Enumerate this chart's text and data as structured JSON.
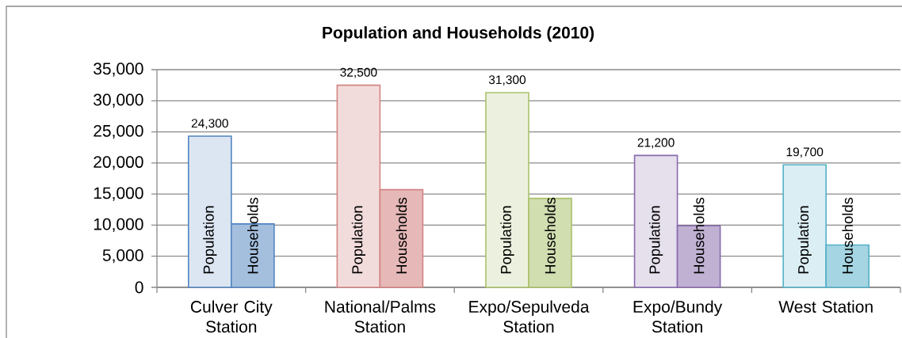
{
  "chart_data": {
    "type": "bar",
    "title": "Population and Households (2010)",
    "categories": [
      "Culver City Station",
      "National/Palms Station",
      "Expo/Sepulveda Station",
      "Expo/Bundy Station",
      "West Station"
    ],
    "series": [
      {
        "name": "Population",
        "colors": [
          "#dce6f2",
          "#f2dcdb",
          "#ebf1de",
          "#e5e0ec",
          "#dbeef4"
        ],
        "values": [
          24300,
          32500,
          31300,
          21200,
          19700
        ],
        "value_labels": [
          "24,300",
          "32,500",
          "31,300",
          "21,200",
          "19,700"
        ]
      },
      {
        "name": "Households",
        "colors": [
          "#a4bfde",
          "#e6b9b8",
          "#d1deb0",
          "#c0b1d3",
          "#a5d5e2"
        ],
        "values": [
          10200,
          15700,
          14300,
          9900,
          6800
        ]
      }
    ],
    "ylim": [
      0,
      35000
    ],
    "yticks": [
      0,
      {
        "value": 5000,
        "label": "5,000"
      },
      {
        "value": 10000,
        "label": "10,000"
      },
      {
        "value": 15000,
        "label": "15,000"
      },
      {
        "value": 20000,
        "label": "20,000"
      },
      {
        "value": 25000,
        "label": "25,000"
      },
      {
        "value": 30000,
        "label": "30,000"
      },
      {
        "value": 35000,
        "label": "35,000"
      }
    ],
    "grid": "y",
    "legend": false
  }
}
